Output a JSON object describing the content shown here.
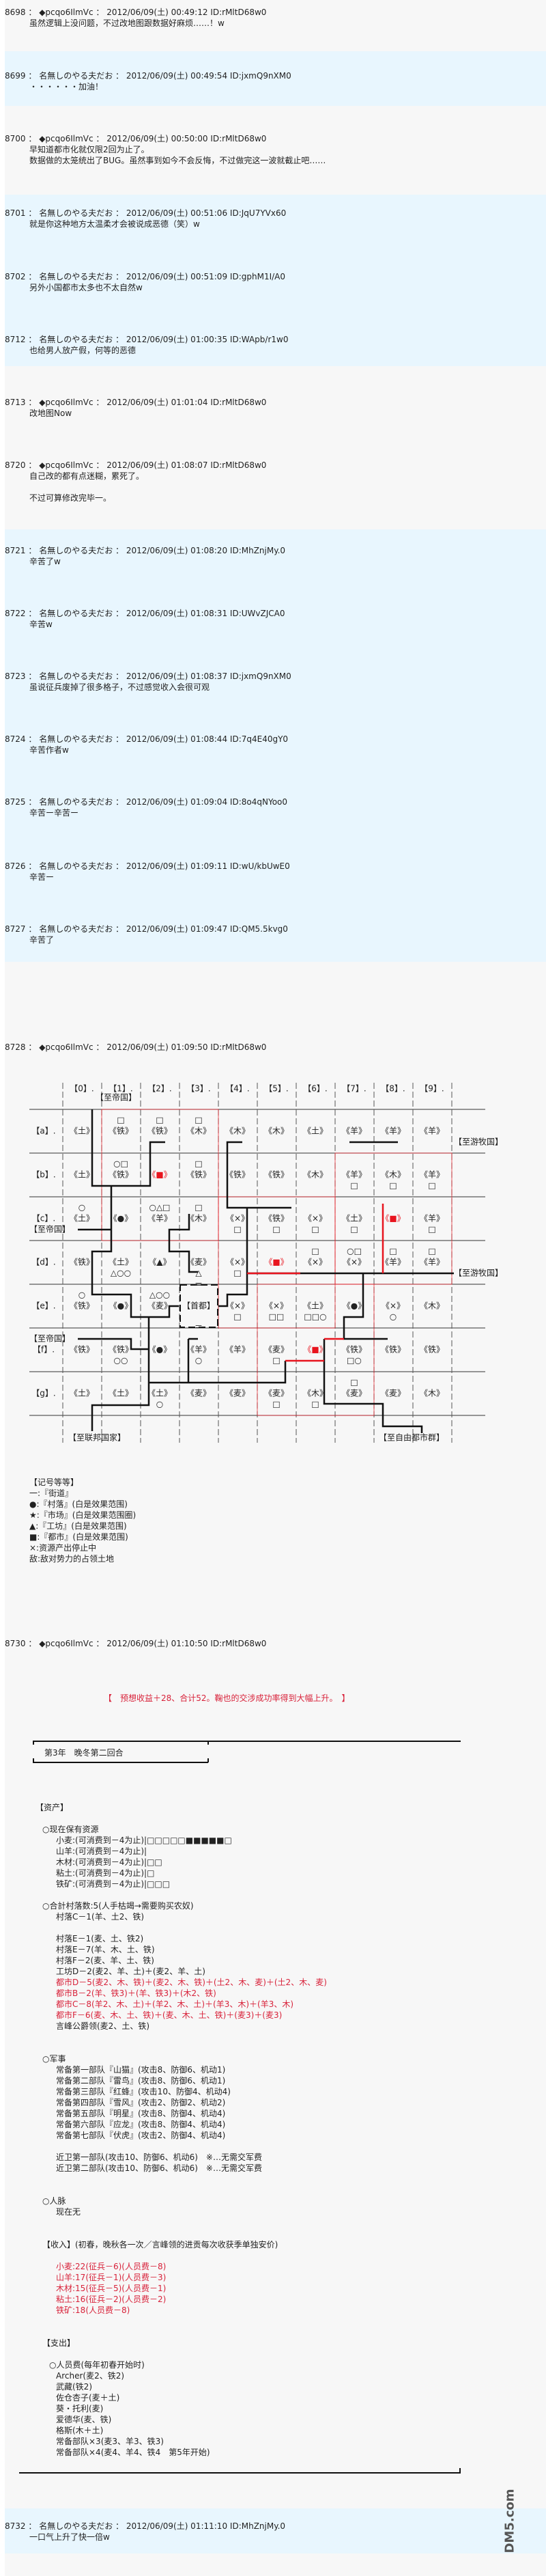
{
  "header_sep": " ： ",
  "id_prefix": "ID:",
  "posts": [
    {
      "num": "8698",
      "name": "◆pcqo6IlmVc",
      "date": "2012/06/09(土) 00:49:12",
      "id": "rMltD68w0",
      "lines": [
        "虽然逻辑上没问题，不过改地图跟数据好麻烦……！w"
      ]
    },
    {
      "num": "8699",
      "name": "名無しのやる夫だお",
      "date": "2012/06/09(土) 00:49:54",
      "id": "jxmQ9nXM0",
      "lines": [
        "・・・・・・加油！"
      ]
    },
    {
      "num": "8700",
      "name": "◆pcqo6IlmVc",
      "date": "2012/06/09(土) 00:50:00",
      "id": "rMltD68w0",
      "lines": [
        "早知道都市化就仅限2回为止了。",
        "数据做的太笼统出了BUG。虽然事到如今不会反悔，不过做完这一波就截止吧……"
      ]
    },
    {
      "num": "8701",
      "name": "名無しのやる夫だお",
      "date": "2012/06/09(土) 00:51:06",
      "id": "JqU7YVx60",
      "lines": [
        "就是你这种地方太温柔才会被说成恶德（笑）w"
      ]
    },
    {
      "num": "8702",
      "name": "名無しのやる夫だお",
      "date": "2012/06/09(土) 00:51:09",
      "id": "gphM1I/A0",
      "lines": [
        "另外小国都市太多也不太自然w"
      ]
    },
    {
      "num": "8712",
      "name": "名無しのやる夫だお",
      "date": "2012/06/09(土) 01:00:35",
      "id": "WApb/r1w0",
      "lines": [
        "也给男人放产假，何等的恶德"
      ]
    },
    {
      "num": "8713",
      "name": "◆pcqo6IlmVc",
      "date": "2012/06/09(土) 01:01:04",
      "id": "rMltD68w0",
      "lines": [
        "改地图Now"
      ]
    },
    {
      "num": "8720",
      "name": "◆pcqo6IlmVc",
      "date": "2012/06/09(土) 01:08:07",
      "id": "rMltD68w0",
      "lines": [
        "自己改的都有点迷糊，累死了。",
        "",
        "不过可算修改完毕一。"
      ]
    },
    {
      "num": "8721",
      "name": "名無しのやる夫だお",
      "date": "2012/06/09(土) 01:08:20",
      "id": "MhZnjMy.0",
      "lines": [
        "辛苦了w"
      ]
    },
    {
      "num": "8722",
      "name": "名無しのやる夫だお",
      "date": "2012/06/09(土) 01:08:31",
      "id": "UWvZJCA0",
      "lines": [
        "辛苦w"
      ]
    },
    {
      "num": "8723",
      "name": "名無しのやる夫だお",
      "date": "2012/06/09(土) 01:08:37",
      "id": "jxmQ9nXM0",
      "lines": [
        "虽说征兵废掉了很多格子，不过感觉收入会很可观"
      ]
    },
    {
      "num": "8724",
      "name": "名無しのやる夫だお",
      "date": "2012/06/09(土) 01:08:44",
      "id": "7q4E40gY0",
      "lines": [
        "辛苦作者w"
      ]
    },
    {
      "num": "8725",
      "name": "名無しのやる夫だお",
      "date": "2012/06/09(土) 01:09:04",
      "id": "8o4qNYoo0",
      "lines": [
        "辛苦ー辛苦ー"
      ]
    },
    {
      "num": "8726",
      "name": "名無しのやる夫だお",
      "date": "2012/06/09(土) 01:09:11",
      "id": "wU/kbUwE0",
      "lines": [
        "辛苦ー"
      ]
    },
    {
      "num": "8727",
      "name": "名無しのやる夫だお",
      "date": "2012/06/09(土) 01:09:47",
      "id": "QM5.5kvg0",
      "lines": [
        "辛苦了"
      ]
    },
    {
      "num": "8728",
      "name": "◆pcqo6IlmVc",
      "date": "2012/06/09(土) 01:09:50",
      "id": "rMltD68w0",
      "lines": []
    },
    {
      "num": "8730",
      "name": "◆pcqo6IlmVc",
      "date": "2012/06/09(土) 01:10:50",
      "id": "rMltD68w0",
      "lines": []
    },
    {
      "num": "8732",
      "name": "名無しのやる夫だお",
      "date": "2012/06/09(土) 01:11:10",
      "id": "MhZnjMy.0",
      "lines": [
        "一口气上升了快一倍w"
      ]
    }
  ],
  "map": {
    "col_labels": [
      "【0】.",
      "【1】.",
      "【2】.",
      "【3】.",
      "【4】.",
      "【5】.",
      "【6】.",
      "【7】.",
      "【8】.",
      "【9】."
    ],
    "row_labels": [
      "【a】.",
      "【b】.",
      "【c】.",
      "【d】.",
      "【e】.",
      "【f】.",
      "【g】."
    ],
    "capital_label": "【首都】",
    "capital_edge": "＝",
    "city_color": "#e8141e",
    "exits": [
      {
        "label": "【至帝国】",
        "where": "top-left"
      },
      {
        "label": "【至帝国】",
        "where": "left-row-c"
      },
      {
        "label": "【至帝国】",
        "where": "left-row-f"
      },
      {
        "label": "【至游牧国】",
        "where": "right-row-a"
      },
      {
        "label": "【至游牧国】",
        "where": "right-row-d"
      },
      {
        "label": "【至联邦国家】",
        "where": "bottom-left"
      },
      {
        "label": "【至自由都市群】",
        "where": "bottom-right"
      }
    ],
    "grid": [
      [
        {
          "r": "《土》"
        },
        {
          "a": "□",
          "r": "《铁》"
        },
        {
          "a": "□",
          "r": "《铁》"
        },
        {
          "a": "□",
          "r": "《木》"
        },
        {
          "r": "《木》"
        },
        {
          "r": "《木》"
        },
        {
          "r": "《土》"
        },
        {
          "r": "《羊》"
        },
        {
          "r": "《羊》"
        },
        {
          "r": "《羊》"
        }
      ],
      [
        {
          "r": "《土》"
        },
        {
          "a": "○□",
          "r": "《铁》"
        },
        {
          "r": "《■》",
          "city": true
        },
        {
          "a": "□",
          "r": "《铁》"
        },
        {
          "r": "《铁》"
        },
        {
          "r": "《铁》"
        },
        {
          "r": "《木》"
        },
        {
          "r": "《羊》",
          "b": "□"
        },
        {
          "r": "《木》",
          "b": "□"
        },
        {
          "r": "《羊》",
          "b": "□"
        }
      ],
      [
        {
          "a": "○",
          "r": "《土》"
        },
        {
          "r": "《●》"
        },
        {
          "a": "○△□",
          "r": "《羊》"
        },
        {
          "a": "□",
          "r": "《木》"
        },
        {
          "r": "《×》",
          "b": "□"
        },
        {
          "r": "《铁》",
          "b": "□"
        },
        {
          "r": "《×》",
          "b": "□"
        },
        {
          "r": "《土》",
          "b": "□"
        },
        {
          "r": "《■》",
          "city": true
        },
        {
          "r": "《羊》",
          "b": "□"
        }
      ],
      [
        {
          "r": "《铁》"
        },
        {
          "r": "《土》",
          "b": "△○○"
        },
        {
          "r": "《▲》"
        },
        {
          "r": "《麦》",
          "b": "△"
        },
        {
          "r": "《×》",
          "b": "□"
        },
        {
          "r": "《■》",
          "city": true
        },
        {
          "a": "□",
          "r": "《×》"
        },
        {
          "a": "○□",
          "r": "《×》"
        },
        {
          "a": "□",
          "r": "《羊》"
        },
        {
          "a": "□",
          "r": "《羊》"
        }
      ],
      [
        {
          "a": "○",
          "r": "《铁》"
        },
        {
          "r": "《●》"
        },
        {
          "a": "△○○",
          "r": "《麦》"
        },
        {
          "capital": true
        },
        {
          "r": "《×》",
          "b": "□"
        },
        {
          "r": "《×》",
          "b": "□□"
        },
        {
          "r": "《土》",
          "b": "□□○"
        },
        {
          "r": "《●》"
        },
        {
          "r": "《×》",
          "b": "○"
        },
        {
          "r": "《木》"
        }
      ],
      [
        {
          "r": "《铁》"
        },
        {
          "r": "《铁》",
          "b": "○○"
        },
        {
          "r": "《●》"
        },
        {
          "r": "《羊》",
          "b": "○"
        },
        {
          "r": "《羊》"
        },
        {
          "r": "《麦》",
          "b": "□"
        },
        {
          "r": "《■》",
          "city": true
        },
        {
          "r": "《铁》",
          "b": "□○"
        },
        {
          "r": "《铁》"
        },
        {
          "r": "《铁》"
        }
      ],
      [
        {
          "r": "《土》"
        },
        {
          "r": "《土》"
        },
        {
          "r": "《土》",
          "b": "○"
        },
        {
          "r": "《麦》"
        },
        {
          "r": "《麦》"
        },
        {
          "r": "《麦》",
          "b": "□"
        },
        {
          "r": "《木》",
          "b": "□"
        },
        {
          "a": "□",
          "r": "《麦》"
        },
        {
          "r": "《麦》"
        },
        {
          "r": "《木》"
        }
      ]
    ]
  },
  "legend": [
    "【记号等等】",
    "一:『街道』",
    "●:『村落』(白是效果范围)",
    "★:『市场』(白是效果范围圈)",
    "▲:『工坊』(白是效果范围)",
    "■:『都市』(白是效果范围)",
    "×:资源产出停止中",
    "敌:敌对势力的占领土地"
  ],
  "report": {
    "title": "第3年　晚冬第二回合",
    "lines": [
      {
        "t": ""
      },
      {
        "t": ""
      },
      {
        "t": ""
      },
      {
        "t": "【　预想收益＋28、合计52。鞠也的交涉成功率得到大幅上升。　】",
        "role": "note",
        "hl": true
      },
      {
        "t": ""
      },
      {
        "t": ""
      },
      {
        "t": ""
      },
      {
        "t": ""
      },
      {
        "t": ""
      },
      {
        "t": ""
      },
      {
        "t": ""
      },
      {
        "t": ""
      },
      {
        "t": ""
      },
      {
        "t": "【资产】",
        "role": "section"
      },
      {
        "t": ""
      },
      {
        "t": "○现在保有资源",
        "role": "sub"
      },
      {
        "t": "小麦:(可消费到－4为止)|□□□□□■■■■■□",
        "role": "item"
      },
      {
        "t": "山羊:(可消费到－4为止)|",
        "role": "item"
      },
      {
        "t": "木材:(可消费到－4为止)|□□",
        "role": "item"
      },
      {
        "t": "粘土:(可消费到－4为止)|□",
        "role": "item"
      },
      {
        "t": "铁矿:(可消费到－4为止)|□□□",
        "role": "item"
      },
      {
        "t": ""
      },
      {
        "t": "○合計村落数:5(人手枯竭→需要购买农奴)",
        "role": "sub"
      },
      {
        "t": "村落C－1(羊、土2、铁)",
        "role": "item"
      },
      {
        "t": ""
      },
      {
        "t": "村落E－1(麦、土、铁2)",
        "role": "item"
      },
      {
        "t": "村落E－7(羊、木、土、铁)",
        "role": "item"
      },
      {
        "t": "村落F－2(麦、羊、土、铁)",
        "role": "item"
      },
      {
        "t": "工坊D－2(麦2、羊、土)＋(麦2、羊、土)",
        "role": "item"
      },
      {
        "t": "都市D－5(麦2、木、铁)＋(麦2、木、铁)＋(土2、木、麦)＋(土2、木、麦)",
        "role": "item",
        "hl": true
      },
      {
        "t": "都市B－2(羊、铁3)＋(羊、铁3)＋(木2、铁)",
        "role": "item",
        "hl": true
      },
      {
        "t": "都市C－8(羊2、木、土)＋(羊2、木、土)＋(羊3、木)＋(羊3、木)",
        "role": "item",
        "hl": true
      },
      {
        "t": "都市F－6(麦、木、土、铁)＋(麦、木、土、铁)＋(麦3)＋(麦3)",
        "role": "item",
        "hl": true
      },
      {
        "t": "言峰公爵领(麦2、土、铁)",
        "role": "item"
      },
      {
        "t": ""
      },
      {
        "t": ""
      },
      {
        "t": "○军事",
        "role": "sub"
      },
      {
        "t": "常备第一部队『山猫』(攻击8、防御6、机动1)",
        "role": "item"
      },
      {
        "t": "常备第二部队『雷鸟』(攻击8、防御6、机动1)",
        "role": "item"
      },
      {
        "t": "常备第三部队『红蜂』(攻击10、防御4、机动4)",
        "role": "item"
      },
      {
        "t": "常备第四部队『雪风』(攻击2、防御2、机动2)",
        "role": "item"
      },
      {
        "t": "常备第五部队『明星』(攻击8、防御4、机动4)",
        "role": "item"
      },
      {
        "t": "常备第六部队『应龙』(攻击8、防御4、机动4)",
        "role": "item"
      },
      {
        "t": "常备第七部队『伏虎』(攻击2、防御4、机动4)",
        "role": "item"
      },
      {
        "t": ""
      },
      {
        "t": "近卫第一部队(攻击10、防御6、机动6)　※…无需交军费",
        "role": "item"
      },
      {
        "t": "近卫第二部队(攻击10、防御6、机动6)　※…无需交军费",
        "role": "item"
      },
      {
        "t": ""
      },
      {
        "t": ""
      },
      {
        "t": "○人脉",
        "role": "sub"
      },
      {
        "t": "现在无",
        "role": "item"
      },
      {
        "t": ""
      },
      {
        "t": ""
      },
      {
        "t": "【收入】(初春，晚秋各一次／言峰领的进贡每次收获季单独安价)",
        "role": "sub"
      },
      {
        "t": ""
      },
      {
        "t": "小麦:22(征兵－6)(人员费－8)",
        "role": "item",
        "hl": true
      },
      {
        "t": "山羊:17(征兵－1)(人员费－3)",
        "role": "item",
        "hl": true
      },
      {
        "t": "木材:15(征兵－5)(人员费－1)",
        "role": "item",
        "hl": true
      },
      {
        "t": "粘土:16(征兵－2)(人员费－2)",
        "role": "item",
        "hl": true
      },
      {
        "t": "铁矿:18(人员费－8)",
        "role": "item",
        "hl": true
      },
      {
        "t": ""
      },
      {
        "t": ""
      },
      {
        "t": "【支出】",
        "role": "sub"
      },
      {
        "t": ""
      },
      {
        "t": "○人员费(每年初春开始时)",
        "role": "sub2"
      },
      {
        "t": "Archer(麦2、铁2)",
        "role": "item"
      },
      {
        "t": "武藏(铁2)",
        "role": "item"
      },
      {
        "t": "佐仓杏子(麦＋土)",
        "role": "item"
      },
      {
        "t": "葵・托利(麦)",
        "role": "item"
      },
      {
        "t": "爱德华(麦、铁)",
        "role": "item"
      },
      {
        "t": "格斯(木＋土)",
        "role": "item"
      },
      {
        "t": "常备部队×3(麦3、羊3、铁3)",
        "role": "item"
      },
      {
        "t": "常备部队×4(麦4、羊4、铁4　第5年开始)",
        "role": "item"
      }
    ]
  },
  "colors": {
    "post_gray": "#f7f7f7",
    "post_blue": "#e8f6fe",
    "highlight_red": "#d8223a"
  },
  "watermark": "DM5.com"
}
